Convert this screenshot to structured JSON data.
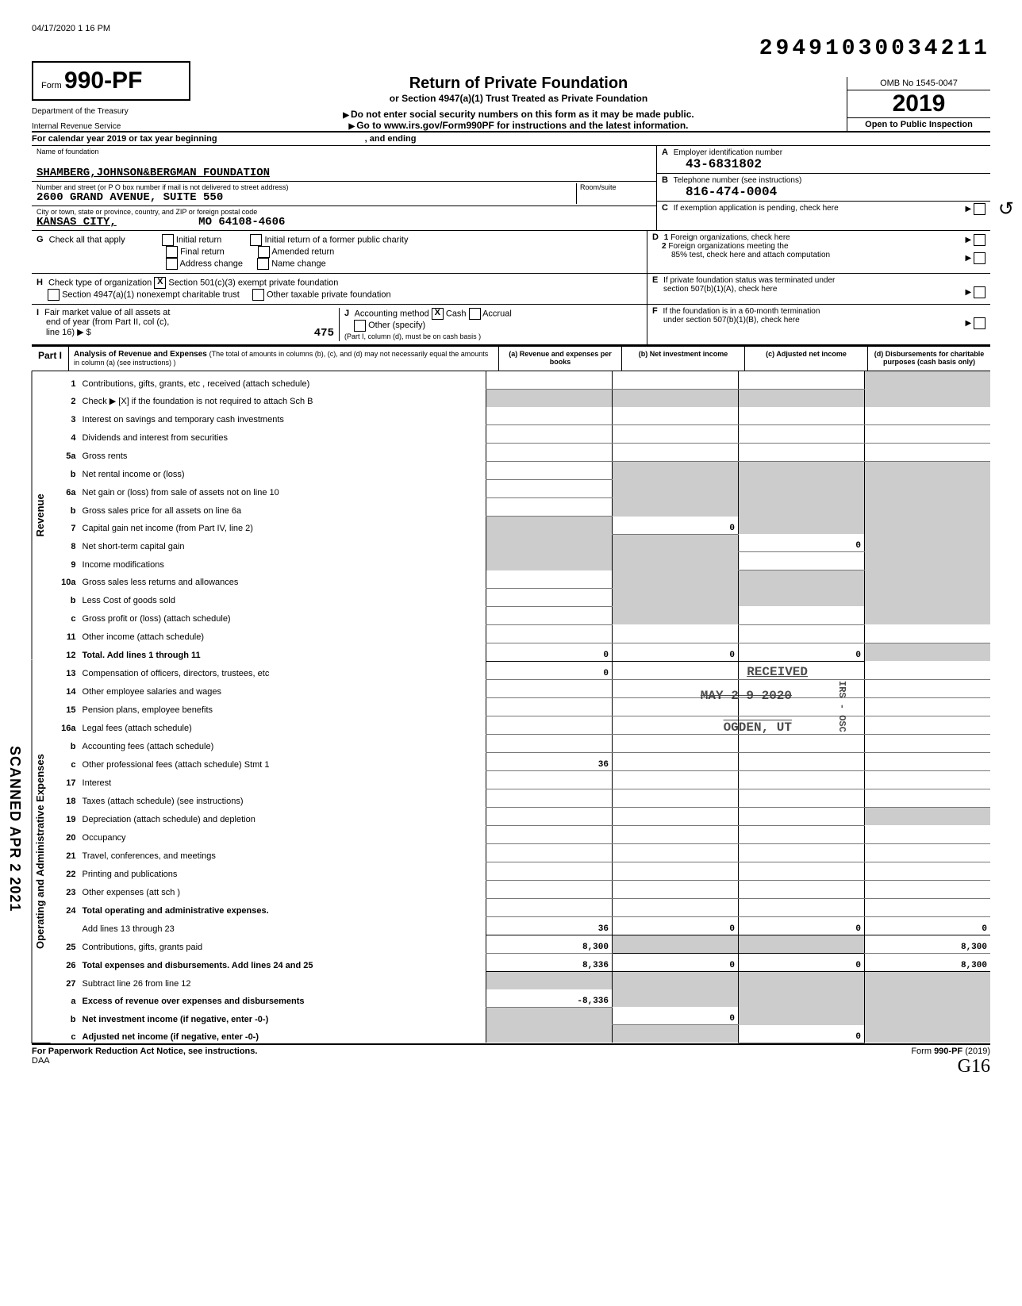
{
  "meta": {
    "print_timestamp": "04/17/2020 1 16 PM",
    "dln": "29491030034211",
    "form_prefix": "Form",
    "form_number": "990-PF",
    "dept_line1": "Department of the Treasury",
    "dept_line2": "Internal Revenue Service",
    "title": "Return of Private Foundation",
    "subtitle": "or Section 4947(a)(1) Trust Treated as Private Foundation",
    "warning": "Do not enter social security numbers on this form as it may be made public.",
    "goto": "Go to www.irs.gov/Form990PF for instructions and the latest information.",
    "omb": "OMB No 1545-0047",
    "year": "2019",
    "inspection": "Open to Public Inspection",
    "calendar_line": "For calendar year 2019 or tax year beginning",
    "calendar_and": ", and ending"
  },
  "identity": {
    "name_label": "Name of foundation",
    "name": "SHAMBERG,JOHNSON&BERGMAN FOUNDATION",
    "street_label": "Number and street (or P O box number if mail is not delivered to street address)",
    "street": "2600 GRAND AVENUE, SUITE 550",
    "room_label": "Room/suite",
    "city_label": "City or town, state or province, country, and ZIP or foreign postal code",
    "city": "KANSAS CITY,",
    "state_zip": "MO 64108-4606",
    "a_label": "Employer identification number",
    "a_letter": "A",
    "ein": "43-6831802",
    "b_label": "Telephone number (see instructions)",
    "b_letter": "B",
    "phone": "816-474-0004",
    "c_label": "If exemption application is pending, check here",
    "c_letter": "C",
    "d_letter": "D",
    "d1": "Foreign organizations, check here",
    "d2a": "Foreign organizations meeting the",
    "d2b": "85% test, check here and attach computation",
    "e_letter": "E",
    "e1": "If private foundation status was terminated under",
    "e2": "section 507(b)(1)(A), check here",
    "f_letter": "F",
    "f1": "If the foundation is in a 60-month termination",
    "f2": "under section 507(b)(1)(B), check here"
  },
  "g": {
    "letter": "G",
    "label": "Check all that apply",
    "opts": [
      "Initial return",
      "Final return",
      "Address change",
      "Initial return of a former public charity",
      "Amended return",
      "Name change"
    ]
  },
  "h": {
    "letter": "H",
    "label": "Check type of organization",
    "opt1": "Section 501(c)(3) exempt private foundation",
    "opt2": "Section 4947(a)(1) nonexempt charitable trust",
    "opt3": "Other taxable private foundation",
    "checked": "X"
  },
  "i": {
    "letter": "I",
    "label": "Fair market value of all assets at",
    "label2": "end of year (from Part II, col (c),",
    "label3": "line 16) ▶ $",
    "value": "475"
  },
  "j": {
    "letter": "J",
    "label": "Accounting method",
    "cash": "Cash",
    "accrual": "Accrual",
    "other": "Other (specify)",
    "note": "(Part I, column (d), must be on cash basis )",
    "checked": "X"
  },
  "part1": {
    "label": "Part I",
    "title": "Analysis of Revenue and Expenses",
    "title_note": "(The total of amounts in columns (b), (c), and (d) may not necessarily equal the amounts in column (a) (see instructions) )",
    "col_a": "(a) Revenue and expenses per books",
    "col_b": "(b) Net investment income",
    "col_c": "(c) Adjusted net income",
    "col_d": "(d) Disbursements for charitable purposes (cash basis only)"
  },
  "sections": {
    "revenue": "Revenue",
    "opadmin": "Operating and Administrative Expenses"
  },
  "rows": [
    {
      "n": "1",
      "d": "Contributions, gifts, grants, etc , received (attach schedule)",
      "a": "",
      "b": "",
      "c": "",
      "dd": "",
      "shade_d": true
    },
    {
      "n": "2",
      "d": "Check ▶ [X] if the foundation is not required to attach Sch B",
      "a": "",
      "b": "",
      "c": "",
      "dd": "",
      "shade_all": true
    },
    {
      "n": "3",
      "d": "Interest on savings and temporary cash investments",
      "a": "",
      "b": "",
      "c": "",
      "dd": ""
    },
    {
      "n": "4",
      "d": "Dividends and interest from securities",
      "a": "",
      "b": "",
      "c": "",
      "dd": ""
    },
    {
      "n": "5a",
      "d": "Gross rents",
      "a": "",
      "b": "",
      "c": "",
      "dd": ""
    },
    {
      "n": "b",
      "d": "Net rental income or (loss)",
      "a": "",
      "b": "",
      "c": "",
      "dd": "",
      "shade_bcd": true
    },
    {
      "n": "6a",
      "d": "Net gain or (loss) from sale of assets not on line 10",
      "a": "",
      "b": "",
      "c": "",
      "dd": "",
      "small": true,
      "shade_bcd": true
    },
    {
      "n": "b",
      "d": "Gross sales price for all assets on line 6a",
      "a": "",
      "b": "",
      "c": "",
      "dd": "",
      "small": true,
      "shade_bcd": true
    },
    {
      "n": "7",
      "d": "Capital gain net income (from Part IV, line 2)",
      "a": "",
      "b": "0",
      "c": "",
      "dd": "",
      "shade_a": true,
      "shade_cd": true
    },
    {
      "n": "8",
      "d": "Net short-term capital gain",
      "a": "",
      "b": "",
      "c": "0",
      "dd": "",
      "shade_ab": true,
      "shade_d": true
    },
    {
      "n": "9",
      "d": "Income modifications",
      "a": "",
      "b": "",
      "c": "",
      "dd": "",
      "shade_ab": true,
      "shade_d": true
    },
    {
      "n": "10a",
      "d": "Gross sales less returns and allowances",
      "a": "",
      "b": "",
      "c": "",
      "dd": "",
      "small": true,
      "shade_bcd": true
    },
    {
      "n": "b",
      "d": "Less Cost of goods sold",
      "a": "",
      "b": "",
      "c": "",
      "dd": "",
      "shade_bcd": true
    },
    {
      "n": "c",
      "d": "Gross profit or (loss) (attach schedule)",
      "a": "",
      "b": "",
      "c": "",
      "dd": "",
      "shade_b": true,
      "shade_d": true
    },
    {
      "n": "11",
      "d": "Other income (attach schedule)",
      "a": "",
      "b": "",
      "c": "",
      "dd": ""
    },
    {
      "n": "12",
      "d": "Total. Add lines 1 through 11",
      "a": "0",
      "b": "0",
      "c": "0",
      "dd": "",
      "bold": true,
      "total": true,
      "shade_d": true
    },
    {
      "n": "13",
      "d": "Compensation of officers, directors, trustees, etc",
      "a": "0",
      "b": "",
      "c": "",
      "dd": ""
    },
    {
      "n": "14",
      "d": "Other employee salaries and wages",
      "a": "",
      "b": "",
      "c": "",
      "dd": ""
    },
    {
      "n": "15",
      "d": "Pension plans, employee benefits",
      "a": "",
      "b": "",
      "c": "",
      "dd": ""
    },
    {
      "n": "16a",
      "d": "Legal fees (attach schedule)",
      "a": "",
      "b": "",
      "c": "",
      "dd": ""
    },
    {
      "n": "b",
      "d": "Accounting fees (attach schedule)",
      "a": "",
      "b": "",
      "c": "",
      "dd": ""
    },
    {
      "n": "c",
      "d": "Other professional fees (attach schedule)    Stmt 1",
      "a": "36",
      "b": "",
      "c": "",
      "dd": ""
    },
    {
      "n": "17",
      "d": "Interest",
      "a": "",
      "b": "",
      "c": "",
      "dd": ""
    },
    {
      "n": "18",
      "d": "Taxes (attach schedule) (see instructions)",
      "a": "",
      "b": "",
      "c": "",
      "dd": ""
    },
    {
      "n": "19",
      "d": "Depreciation (attach schedule) and depletion",
      "a": "",
      "b": "",
      "c": "",
      "dd": "",
      "shade_d": true
    },
    {
      "n": "20",
      "d": "Occupancy",
      "a": "",
      "b": "",
      "c": "",
      "dd": ""
    },
    {
      "n": "21",
      "d": "Travel, conferences, and meetings",
      "a": "",
      "b": "",
      "c": "",
      "dd": ""
    },
    {
      "n": "22",
      "d": "Printing and publications",
      "a": "",
      "b": "",
      "c": "",
      "dd": ""
    },
    {
      "n": "23",
      "d": "Other expenses (att sch )",
      "a": "",
      "b": "",
      "c": "",
      "dd": "",
      "small": true
    },
    {
      "n": "24",
      "d": "Total operating and administrative expenses.",
      "a": "",
      "b": "",
      "c": "",
      "dd": "",
      "bold": true
    },
    {
      "n": "",
      "d": "Add lines 13 through 23",
      "a": "36",
      "b": "0",
      "c": "0",
      "dd": "0",
      "total": true
    },
    {
      "n": "25",
      "d": "Contributions, gifts, grants paid",
      "a": "8,300",
      "b": "",
      "c": "",
      "dd": "8,300",
      "small": true,
      "shade_bc": true
    },
    {
      "n": "26",
      "d": "Total expenses and disbursements. Add lines 24 and 25",
      "a": "8,336",
      "b": "0",
      "c": "0",
      "dd": "8,300",
      "bold": true,
      "total": true
    },
    {
      "n": "27",
      "d": "Subtract line 26 from line 12",
      "a": "",
      "b": "",
      "c": "",
      "dd": "",
      "shade_all": true
    },
    {
      "n": "a",
      "d": "Excess of revenue over expenses and disbursements",
      "a": "-8,336",
      "b": "",
      "c": "",
      "dd": "",
      "bold": true,
      "shade_bcd": true
    },
    {
      "n": "b",
      "d": "Net investment income (if negative, enter -0-)",
      "a": "",
      "b": "0",
      "c": "",
      "dd": "",
      "bold": true,
      "shade_a": true,
      "shade_cd": true
    },
    {
      "n": "c",
      "d": "Adjusted net income (if negative, enter -0-)",
      "a": "",
      "b": "",
      "c": "0",
      "dd": "",
      "bold": true,
      "shade_ab": true,
      "shade_d": true
    }
  ],
  "footer": {
    "left": "For Paperwork Reduction Act Notice, see instructions.",
    "daa": "DAA",
    "right_prefix": "Form",
    "right_form": "990-PF",
    "right_year": "(2019)"
  },
  "stamps": {
    "received": "RECEIVED",
    "date": "MAY 2 9 2020",
    "ogden": "OGDEN, UT",
    "irs_osc": "IRS - OSC",
    "scanned": "SCANNED APR 2 2021",
    "hw_initials": "G16"
  }
}
